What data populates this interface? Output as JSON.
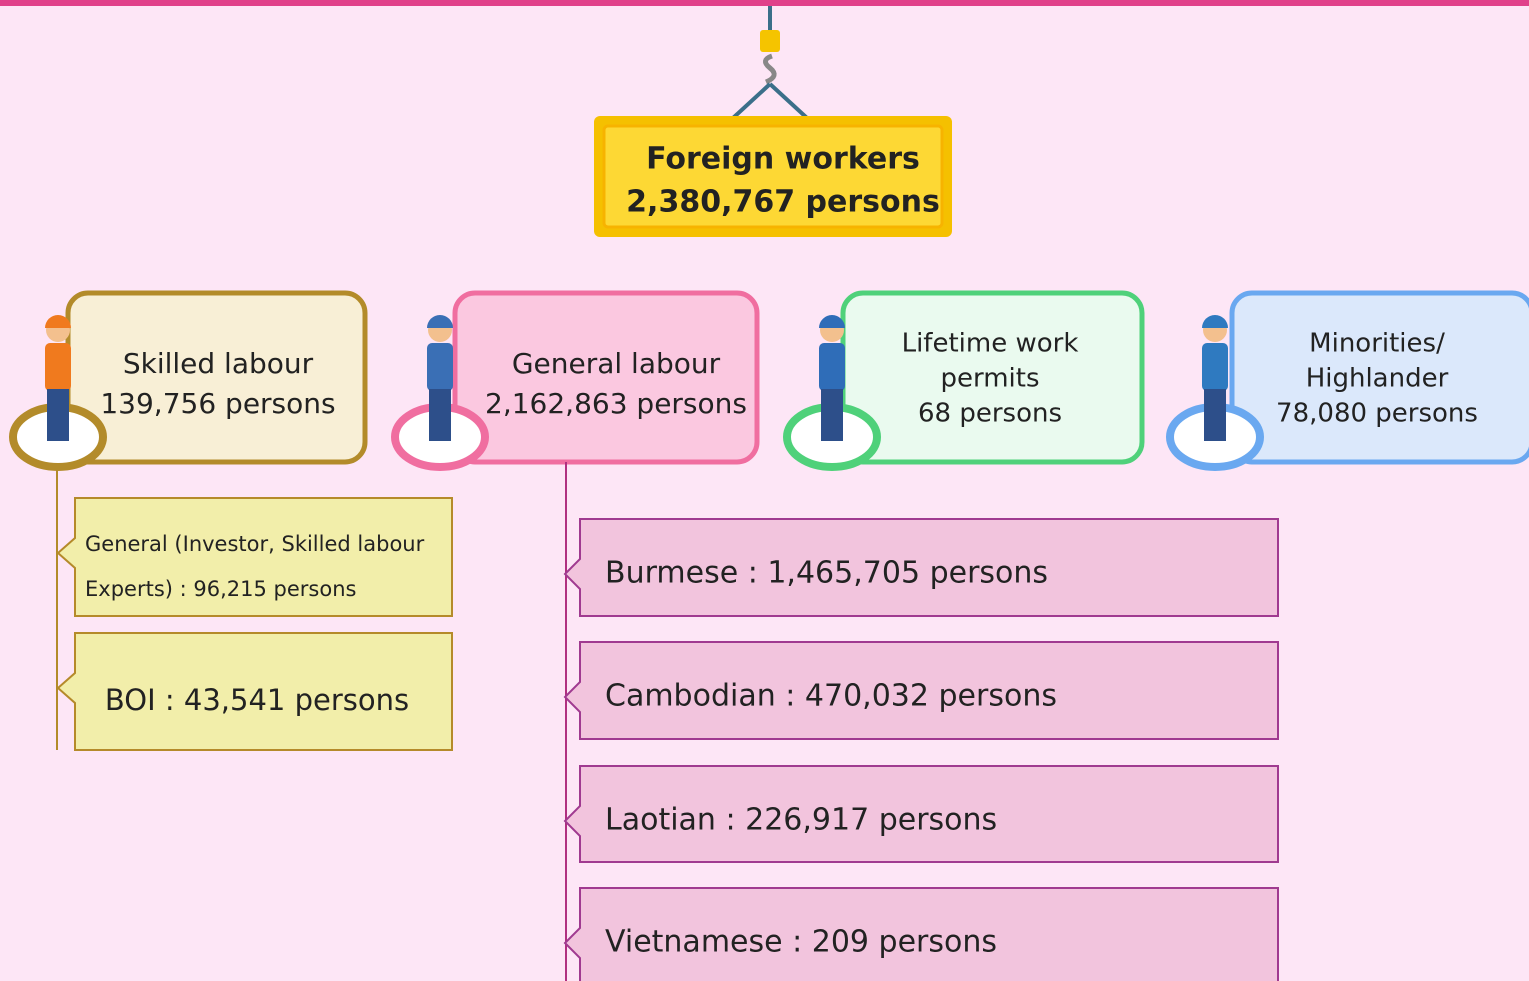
{
  "root": {
    "lines": [
      "Foreign workers",
      "2,380,767 persons"
    ]
  },
  "groups": [
    {
      "lines": [
        "Skilled labour",
        "139,756 persons"
      ],
      "items": [
        {
          "lines": [
            "General (Investor, Skilled labour",
            "Experts) : 96,215 persons"
          ]
        },
        {
          "lines": [
            "BOI : 43,541 persons"
          ]
        }
      ]
    },
    {
      "lines": [
        "General labour",
        "2,162,863 persons"
      ],
      "items": [
        {
          "lines": [
            "Burmese : 1,465,705 persons"
          ]
        },
        {
          "lines": [
            "Cambodian : 470,032 persons"
          ]
        },
        {
          "lines": [
            "Laotian : 226,917 persons"
          ]
        },
        {
          "lines": [
            "Vietnamese : 209 persons"
          ]
        }
      ]
    },
    {
      "lines": [
        "Lifetime work",
        "permits",
        "68 persons"
      ],
      "items": []
    },
    {
      "lines": [
        "Minorities/",
        "Highlander",
        "78,080 persons"
      ],
      "items": []
    }
  ]
}
